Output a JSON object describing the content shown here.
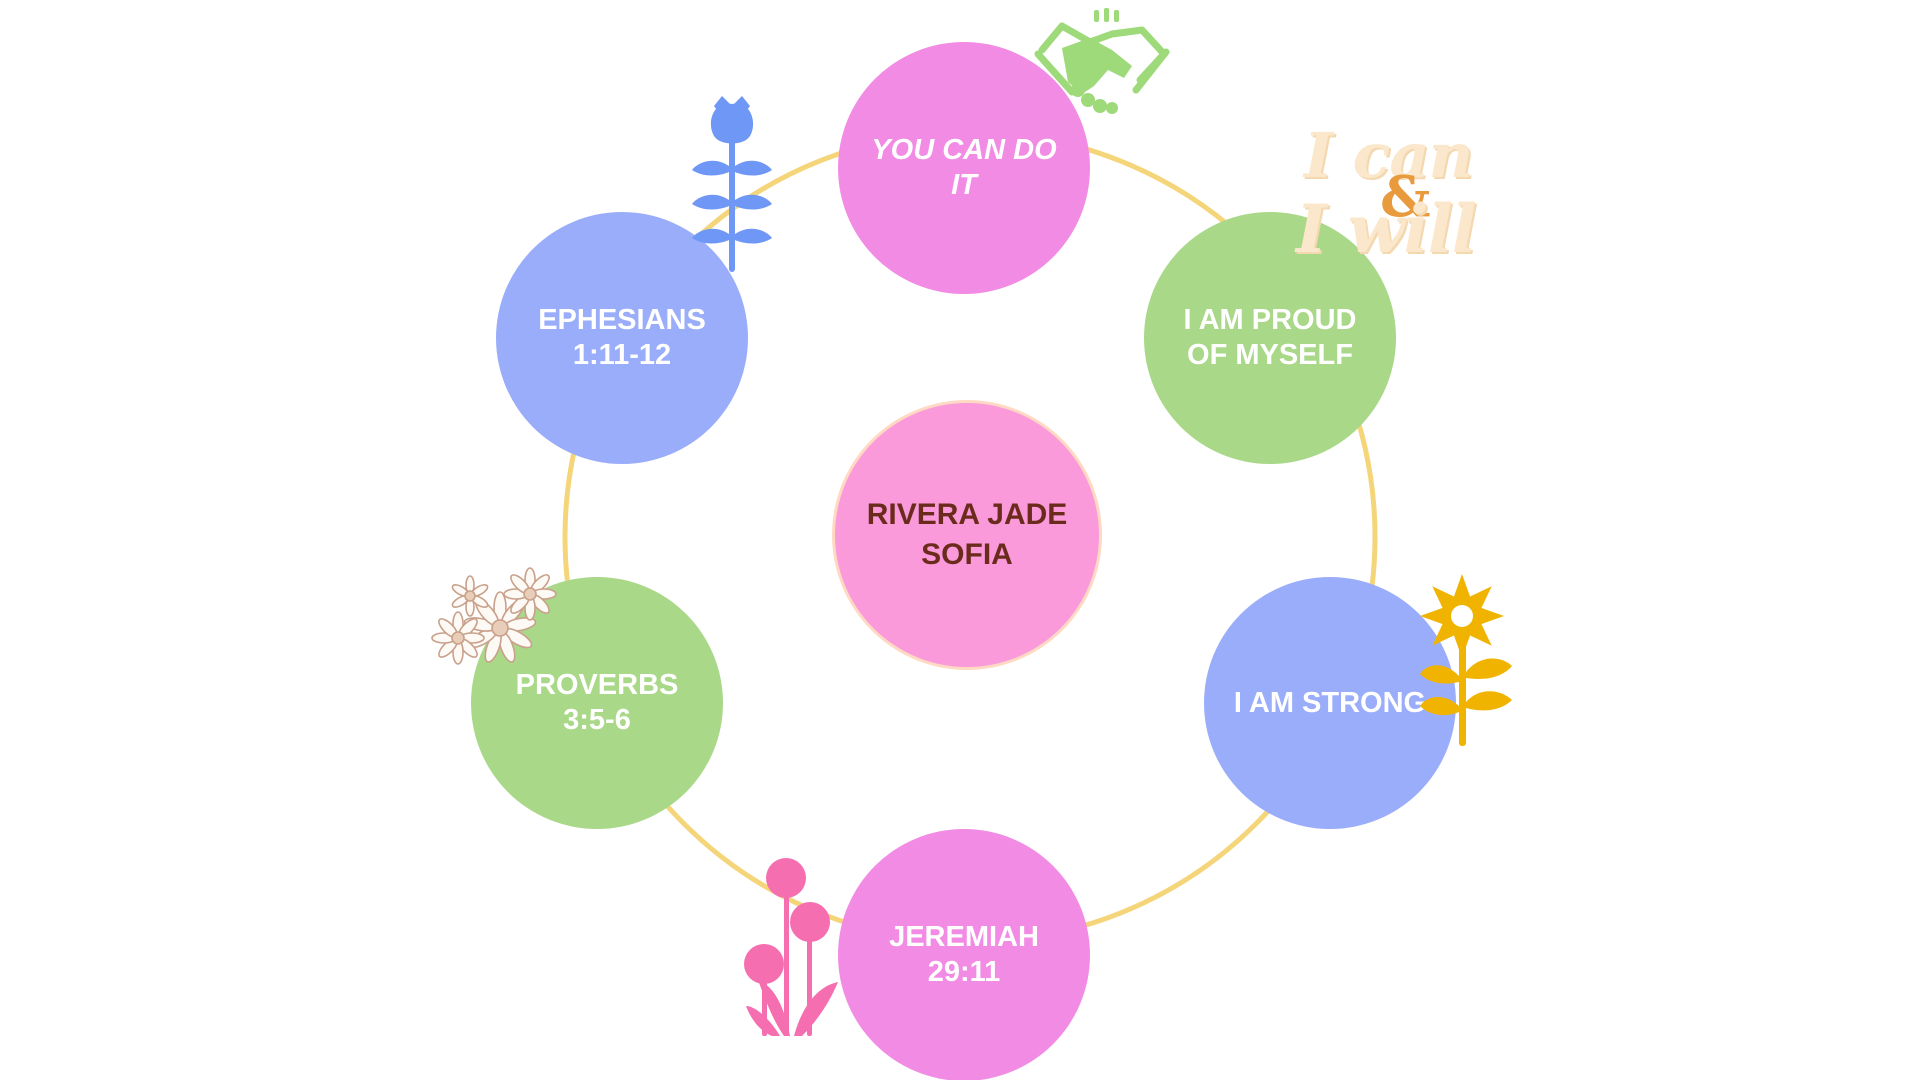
{
  "center": {
    "label": "RIVERA JADE\nSOFIA",
    "color": "#fa9ada"
  },
  "nodes": [
    {
      "label": "YOU CAN DO\nIT",
      "color": "#f28be3",
      "italic": true
    },
    {
      "label": "I AM PROUD\nOF MYSELF",
      "color": "#aad889",
      "italic": false
    },
    {
      "label": "I AM STRONG",
      "color": "#9aadfa",
      "italic": false
    },
    {
      "label": "JEREMIAH\n29:11",
      "color": "#f28be3",
      "italic": false
    },
    {
      "label": "PROVERBS\n3:5-6",
      "color": "#aad889",
      "italic": false
    },
    {
      "label": "EPHESIANS\n1:11-12",
      "color": "#9aadfa",
      "italic": false
    }
  ],
  "ring_color": "#f5d57a",
  "sticker": {
    "line1": "I can",
    "amp": "&",
    "line2": "I will"
  },
  "icons": {
    "handshake": "handshake-icon",
    "blue_flower": "blue-flower-icon",
    "white_flowers": "white-daisy-flowers-icon",
    "yellow_flower": "yellow-flower-icon",
    "pink_flowers": "pink-flowers-icon"
  },
  "colors": {
    "handshake": "#9ed97a",
    "blue_flower": "#6f97f5",
    "yellow_flower": "#f0b400",
    "pink_flowers": "#f56fb0",
    "white_flowers": "#c9a08a"
  }
}
